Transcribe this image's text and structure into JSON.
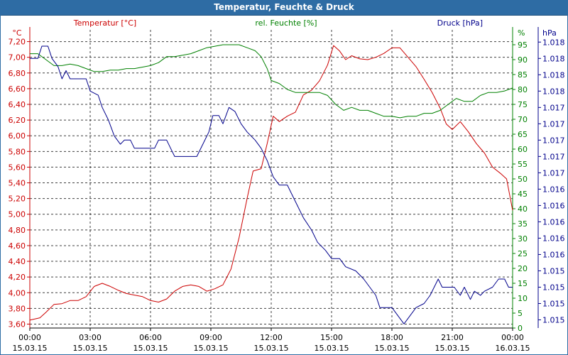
{
  "window": {
    "title": "Temperatur, Feuchte & Druck"
  },
  "chart_data": {
    "type": "line",
    "title": "Temperatur, Feuchte & Druck",
    "x_ticks": [
      {
        "time": "00:00",
        "date": "15.03.15",
        "h": 0
      },
      {
        "time": "03:00",
        "date": "15.03.15",
        "h": 3
      },
      {
        "time": "06:00",
        "date": "15.03.15",
        "h": 6
      },
      {
        "time": "09:00",
        "date": "15.03.15",
        "h": 9
      },
      {
        "time": "12:00",
        "date": "15.03.15",
        "h": 12
      },
      {
        "time": "15:00",
        "date": "15.03.15",
        "h": 15
      },
      {
        "time": "18:00",
        "date": "15.03.15",
        "h": 18
      },
      {
        "time": "21:00",
        "date": "15.03.15",
        "h": 21
      },
      {
        "time": "00:00",
        "date": "16.03.15",
        "h": 24
      }
    ],
    "x_range": [
      0,
      24
    ],
    "axes": {
      "temperature": {
        "label": "Temperatur [°C]",
        "unit": "°C",
        "color": "#cc0000",
        "range": [
          3.55,
          7.35
        ],
        "ticks": [
          {
            "v": 3.6,
            "t": "3,60"
          },
          {
            "v": 3.8,
            "t": "3,80"
          },
          {
            "v": 4.0,
            "t": "4,00"
          },
          {
            "v": 4.2,
            "t": "4,20"
          },
          {
            "v": 4.4,
            "t": "4,40"
          },
          {
            "v": 4.6,
            "t": "4,60"
          },
          {
            "v": 4.8,
            "t": "4,80"
          },
          {
            "v": 5.0,
            "t": "5,00"
          },
          {
            "v": 5.2,
            "t": "5,20"
          },
          {
            "v": 5.4,
            "t": "5,40"
          },
          {
            "v": 5.6,
            "t": "5,60"
          },
          {
            "v": 5.8,
            "t": "5,80"
          },
          {
            "v": 6.0,
            "t": "6,00"
          },
          {
            "v": 6.2,
            "t": "6,20"
          },
          {
            "v": 6.4,
            "t": "6,40"
          },
          {
            "v": 6.6,
            "t": "6,60"
          },
          {
            "v": 6.8,
            "t": "6,80"
          },
          {
            "v": 7.0,
            "t": "7,00"
          },
          {
            "v": 7.2,
            "t": "7,20"
          }
        ]
      },
      "humidity": {
        "label": "rel. Feuchte [%]",
        "unit": "%",
        "color": "#008000",
        "range": [
          0,
          100
        ],
        "ticks": [
          {
            "v": 0,
            "t": "0"
          },
          {
            "v": 5,
            "t": "5"
          },
          {
            "v": 10,
            "t": "10"
          },
          {
            "v": 15,
            "t": "15"
          },
          {
            "v": 20,
            "t": "20"
          },
          {
            "v": 25,
            "t": "25"
          },
          {
            "v": 30,
            "t": "30"
          },
          {
            "v": 35,
            "t": "35"
          },
          {
            "v": 40,
            "t": "40"
          },
          {
            "v": 45,
            "t": "45"
          },
          {
            "v": 50,
            "t": "50"
          },
          {
            "v": 55,
            "t": "55"
          },
          {
            "v": 60,
            "t": "60"
          },
          {
            "v": 65,
            "t": "65"
          },
          {
            "v": 70,
            "t": "70"
          },
          {
            "v": 75,
            "t": "75"
          },
          {
            "v": 80,
            "t": "80"
          },
          {
            "v": 85,
            "t": "85"
          },
          {
            "v": 90,
            "t": "90"
          },
          {
            "v": 95,
            "t": "95"
          }
        ]
      },
      "pressure": {
        "label": "Druck [hPa]",
        "unit": "hPa",
        "color": "#00008b",
        "range": [
          1014.7,
          1018.35
        ],
        "ticks": [
          {
            "v": 1014.8,
            "t": "1.015"
          },
          {
            "v": 1015.0,
            "t": "1.015"
          },
          {
            "v": 1015.2,
            "t": "1.015"
          },
          {
            "v": 1015.4,
            "t": "1.015"
          },
          {
            "v": 1015.6,
            "t": "1.016"
          },
          {
            "v": 1015.8,
            "t": "1.016"
          },
          {
            "v": 1016.0,
            "t": "1.016"
          },
          {
            "v": 1016.2,
            "t": "1.016"
          },
          {
            "v": 1016.4,
            "t": "1.016"
          },
          {
            "v": 1016.6,
            "t": "1.017"
          },
          {
            "v": 1016.8,
            "t": "1.017"
          },
          {
            "v": 1017.0,
            "t": "1.017"
          },
          {
            "v": 1017.2,
            "t": "1.017"
          },
          {
            "v": 1017.4,
            "t": "1.017"
          },
          {
            "v": 1017.6,
            "t": "1.018"
          },
          {
            "v": 1017.8,
            "t": "1.018"
          },
          {
            "v": 1018.0,
            "t": "1.018"
          },
          {
            "v": 1018.2,
            "t": "1.018"
          }
        ]
      }
    },
    "grid": true,
    "series": [
      {
        "name": "Temperatur",
        "axis": "temperature",
        "points": [
          [
            0,
            3.65
          ],
          [
            0.5,
            3.68
          ],
          [
            0.8,
            3.75
          ],
          [
            1.2,
            3.85
          ],
          [
            1.6,
            3.86
          ],
          [
            2.0,
            3.9
          ],
          [
            2.4,
            3.9
          ],
          [
            2.8,
            3.95
          ],
          [
            3.2,
            4.08
          ],
          [
            3.6,
            4.12
          ],
          [
            4.0,
            4.08
          ],
          [
            4.4,
            4.03
          ],
          [
            4.8,
            3.99
          ],
          [
            5.2,
            3.97
          ],
          [
            5.6,
            3.95
          ],
          [
            6.0,
            3.9
          ],
          [
            6.4,
            3.88
          ],
          [
            6.8,
            3.92
          ],
          [
            7.2,
            4.02
          ],
          [
            7.6,
            4.08
          ],
          [
            8.0,
            4.1
          ],
          [
            8.4,
            4.08
          ],
          [
            8.8,
            4.02
          ],
          [
            9.2,
            4.05
          ],
          [
            9.6,
            4.1
          ],
          [
            10.0,
            4.3
          ],
          [
            10.4,
            4.7
          ],
          [
            10.8,
            5.2
          ],
          [
            11.1,
            5.55
          ],
          [
            11.5,
            5.58
          ],
          [
            11.8,
            5.9
          ],
          [
            12.1,
            6.25
          ],
          [
            12.4,
            6.18
          ],
          [
            12.8,
            6.25
          ],
          [
            13.2,
            6.3
          ],
          [
            13.6,
            6.52
          ],
          [
            14.0,
            6.58
          ],
          [
            14.4,
            6.7
          ],
          [
            14.8,
            6.9
          ],
          [
            15.1,
            7.15
          ],
          [
            15.4,
            7.08
          ],
          [
            15.7,
            6.97
          ],
          [
            16.0,
            7.02
          ],
          [
            16.4,
            6.98
          ],
          [
            16.8,
            6.97
          ],
          [
            17.2,
            7.0
          ],
          [
            17.6,
            7.05
          ],
          [
            18.0,
            7.12
          ],
          [
            18.4,
            7.12
          ],
          [
            18.8,
            7.0
          ],
          [
            19.2,
            6.88
          ],
          [
            19.6,
            6.72
          ],
          [
            20.0,
            6.55
          ],
          [
            20.4,
            6.35
          ],
          [
            20.7,
            6.15
          ],
          [
            21.0,
            6.08
          ],
          [
            21.4,
            6.18
          ],
          [
            21.8,
            6.05
          ],
          [
            22.2,
            5.9
          ],
          [
            22.6,
            5.78
          ],
          [
            23.0,
            5.6
          ],
          [
            23.4,
            5.52
          ],
          [
            23.7,
            5.45
          ],
          [
            24.0,
            5.05
          ]
        ]
      },
      {
        "name": "rel. Feuchte",
        "axis": "humidity",
        "points": [
          [
            0,
            92
          ],
          [
            0.4,
            92
          ],
          [
            0.8,
            90
          ],
          [
            1.2,
            88
          ],
          [
            1.6,
            88
          ],
          [
            2.0,
            88.5
          ],
          [
            2.4,
            88
          ],
          [
            2.8,
            87
          ],
          [
            3.2,
            86
          ],
          [
            3.6,
            86
          ],
          [
            4.0,
            86.5
          ],
          [
            4.4,
            86.5
          ],
          [
            4.8,
            87
          ],
          [
            5.2,
            87
          ],
          [
            5.6,
            87.5
          ],
          [
            6.0,
            88
          ],
          [
            6.4,
            89
          ],
          [
            6.8,
            91
          ],
          [
            7.2,
            91
          ],
          [
            7.6,
            91.5
          ],
          [
            8.0,
            92
          ],
          [
            8.4,
            93
          ],
          [
            8.8,
            94
          ],
          [
            9.2,
            94.5
          ],
          [
            9.6,
            95
          ],
          [
            10.0,
            95
          ],
          [
            10.4,
            95
          ],
          [
            10.8,
            94
          ],
          [
            11.2,
            93
          ],
          [
            11.5,
            91
          ],
          [
            11.8,
            87
          ],
          [
            12.0,
            83
          ],
          [
            12.4,
            82
          ],
          [
            12.8,
            80
          ],
          [
            13.2,
            79
          ],
          [
            13.6,
            79
          ],
          [
            14.0,
            79
          ],
          [
            14.4,
            79
          ],
          [
            14.8,
            78
          ],
          [
            15.2,
            75
          ],
          [
            15.6,
            73
          ],
          [
            16.0,
            74
          ],
          [
            16.4,
            73
          ],
          [
            16.8,
            73
          ],
          [
            17.2,
            72
          ],
          [
            17.6,
            71
          ],
          [
            18.0,
            71
          ],
          [
            18.4,
            70.5
          ],
          [
            18.8,
            71
          ],
          [
            19.2,
            71
          ],
          [
            19.6,
            72
          ],
          [
            20.0,
            72
          ],
          [
            20.4,
            73
          ],
          [
            20.8,
            75
          ],
          [
            21.2,
            77
          ],
          [
            21.6,
            76
          ],
          [
            22.0,
            76
          ],
          [
            22.4,
            78
          ],
          [
            22.8,
            79
          ],
          [
            23.2,
            79
          ],
          [
            23.6,
            79.5
          ],
          [
            24.0,
            80.5
          ]
        ]
      },
      {
        "name": "Druck",
        "axis": "pressure",
        "points": [
          [
            0,
            1018.0
          ],
          [
            0.4,
            1018.0
          ],
          [
            0.6,
            1018.15
          ],
          [
            0.9,
            1018.15
          ],
          [
            1.1,
            1018.0
          ],
          [
            1.4,
            1017.9
          ],
          [
            1.6,
            1017.75
          ],
          [
            1.8,
            1017.85
          ],
          [
            2.0,
            1017.75
          ],
          [
            2.8,
            1017.75
          ],
          [
            3.0,
            1017.6
          ],
          [
            3.4,
            1017.55
          ],
          [
            3.6,
            1017.4
          ],
          [
            3.9,
            1017.25
          ],
          [
            4.2,
            1017.05
          ],
          [
            4.5,
            1016.95
          ],
          [
            4.7,
            1017.0
          ],
          [
            5.0,
            1017.0
          ],
          [
            5.2,
            1016.9
          ],
          [
            6.2,
            1016.9
          ],
          [
            6.4,
            1017.0
          ],
          [
            6.8,
            1017.0
          ],
          [
            7.0,
            1016.9
          ],
          [
            7.2,
            1016.8
          ],
          [
            8.3,
            1016.8
          ],
          [
            8.6,
            1016.95
          ],
          [
            8.9,
            1017.1
          ],
          [
            9.1,
            1017.3
          ],
          [
            9.4,
            1017.3
          ],
          [
            9.6,
            1017.2
          ],
          [
            9.9,
            1017.4
          ],
          [
            10.2,
            1017.35
          ],
          [
            10.5,
            1017.2
          ],
          [
            10.8,
            1017.1
          ],
          [
            11.2,
            1017.0
          ],
          [
            11.5,
            1016.9
          ],
          [
            11.8,
            1016.75
          ],
          [
            12.1,
            1016.55
          ],
          [
            12.4,
            1016.45
          ],
          [
            12.8,
            1016.45
          ],
          [
            13.0,
            1016.35
          ],
          [
            13.3,
            1016.2
          ],
          [
            13.6,
            1016.05
          ],
          [
            14.0,
            1015.9
          ],
          [
            14.3,
            1015.75
          ],
          [
            14.7,
            1015.65
          ],
          [
            15.0,
            1015.55
          ],
          [
            15.4,
            1015.55
          ],
          [
            15.7,
            1015.45
          ],
          [
            16.2,
            1015.4
          ],
          [
            16.6,
            1015.3
          ],
          [
            16.9,
            1015.2
          ],
          [
            17.2,
            1015.1
          ],
          [
            17.4,
            1014.95
          ],
          [
            17.7,
            1014.95
          ],
          [
            18.0,
            1014.95
          ],
          [
            18.3,
            1014.85
          ],
          [
            18.6,
            1014.75
          ],
          [
            18.9,
            1014.85
          ],
          [
            19.2,
            1014.95
          ],
          [
            19.6,
            1015.0
          ],
          [
            19.9,
            1015.1
          ],
          [
            20.1,
            1015.2
          ],
          [
            20.3,
            1015.3
          ],
          [
            20.5,
            1015.2
          ],
          [
            21.1,
            1015.2
          ],
          [
            21.4,
            1015.1
          ],
          [
            21.6,
            1015.2
          ],
          [
            21.9,
            1015.05
          ],
          [
            22.1,
            1015.15
          ],
          [
            22.4,
            1015.1
          ],
          [
            22.6,
            1015.15
          ],
          [
            23.0,
            1015.2
          ],
          [
            23.3,
            1015.3
          ],
          [
            23.6,
            1015.3
          ],
          [
            23.8,
            1015.2
          ],
          [
            24.0,
            1015.2
          ]
        ]
      }
    ]
  }
}
